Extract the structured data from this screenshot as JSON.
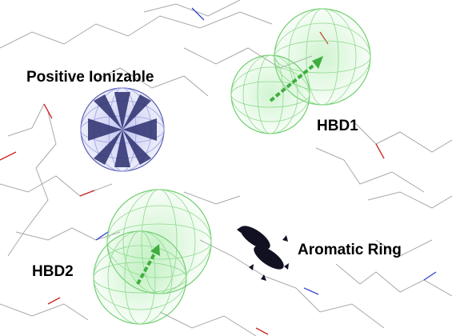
{
  "labels": {
    "positive_ionizable": "Positive Ionizable",
    "hbd1": "HBD1",
    "hbd2": "HBD2",
    "aromatic_ring": "Aromatic Ring"
  },
  "colors": {
    "positive_ionizable": "#3a3f8f",
    "hbd": "#5fcf5f",
    "aromatic": "#101020",
    "molecule_line": "#9a9a9a",
    "oxygen": "#cc2222",
    "nitrogen": "#3344cc"
  }
}
